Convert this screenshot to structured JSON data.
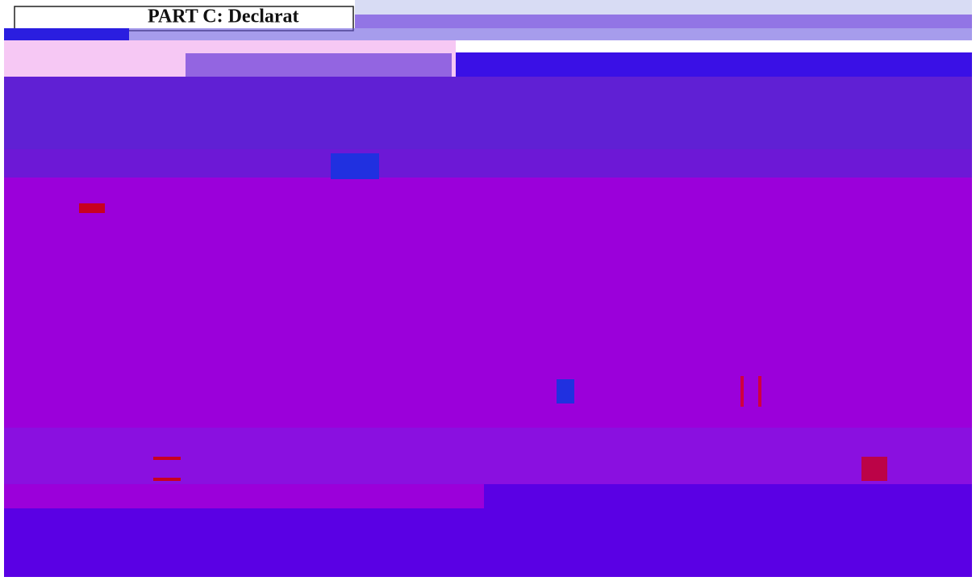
{
  "header": {
    "title": "PART C: Declarat"
  }
}
